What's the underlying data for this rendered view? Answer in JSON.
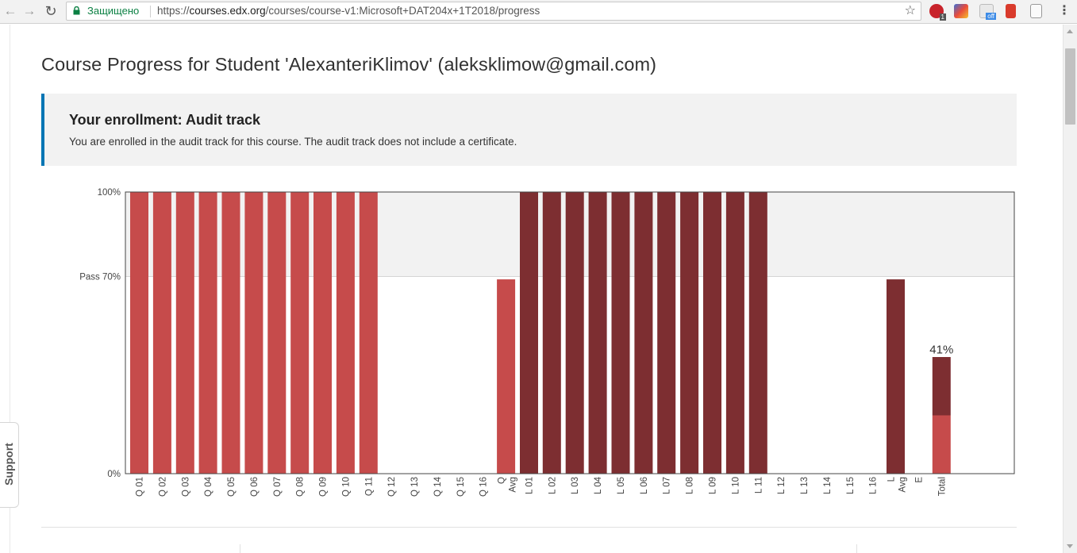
{
  "browser": {
    "secure_label": "Защищено",
    "url_scheme": "https://",
    "url_host": "courses.edx.org",
    "url_path": "/courses/course-v1:Microsoft+DAT204x+1T2018/progress",
    "extension_badges": [
      "1",
      "off"
    ]
  },
  "page": {
    "title": "Course Progress for Student 'AlexanteriKlimov' (aleksklimow@gmail.com)",
    "enrollment": {
      "heading": "Your enrollment: Audit track",
      "text": "You are enrolled in the audit track for this course. The audit track does not include a certificate."
    },
    "support_label": "Support"
  },
  "colors": {
    "quiz": "#c64b4b",
    "lab": "#7d2e31",
    "pass_region": "#f2f2f2",
    "accent": "#0075b4"
  },
  "chart_data": {
    "type": "bar",
    "y_ticks": [
      {
        "label": "100%",
        "value": 100
      },
      {
        "label": "Pass 70%",
        "value": 70
      },
      {
        "label": "0%",
        "value": 0
      }
    ],
    "ylim": [
      0,
      100
    ],
    "pass_threshold": 70,
    "categories": [
      "Q 01",
      "Q 02",
      "Q 03",
      "Q 04",
      "Q 05",
      "Q 06",
      "Q 07",
      "Q 08",
      "Q 09",
      "Q 10",
      "Q 11",
      "Q 12",
      "Q 13",
      "Q 14",
      "Q 15",
      "Q 16",
      "Q Avg",
      "L 01",
      "L 02",
      "L 03",
      "L 04",
      "L 05",
      "L 06",
      "L 07",
      "L 08",
      "L 09",
      "L 10",
      "L 11",
      "L 12",
      "L 13",
      "L 14",
      "L 15",
      "L 16",
      "L Avg",
      "E",
      "Total"
    ],
    "series": [
      {
        "group": "quiz",
        "values": [
          100,
          100,
          100,
          100,
          100,
          100,
          100,
          100,
          100,
          100,
          100,
          0,
          0,
          0,
          0,
          0,
          69,
          null,
          null,
          null,
          null,
          null,
          null,
          null,
          null,
          null,
          null,
          null,
          null,
          null,
          null,
          null,
          null,
          null,
          null,
          null
        ]
      },
      {
        "group": "lab",
        "values": [
          null,
          null,
          null,
          null,
          null,
          null,
          null,
          null,
          null,
          null,
          null,
          null,
          null,
          null,
          null,
          null,
          null,
          100,
          100,
          100,
          100,
          100,
          100,
          100,
          100,
          100,
          100,
          100,
          0,
          0,
          0,
          0,
          0,
          69,
          null,
          null
        ]
      }
    ],
    "exam_value": 0,
    "total": {
      "label": "41%",
      "value": 41,
      "stack": [
        {
          "group": "quiz",
          "value": 20.7
        },
        {
          "group": "lab",
          "value": 20.7
        }
      ]
    }
  }
}
